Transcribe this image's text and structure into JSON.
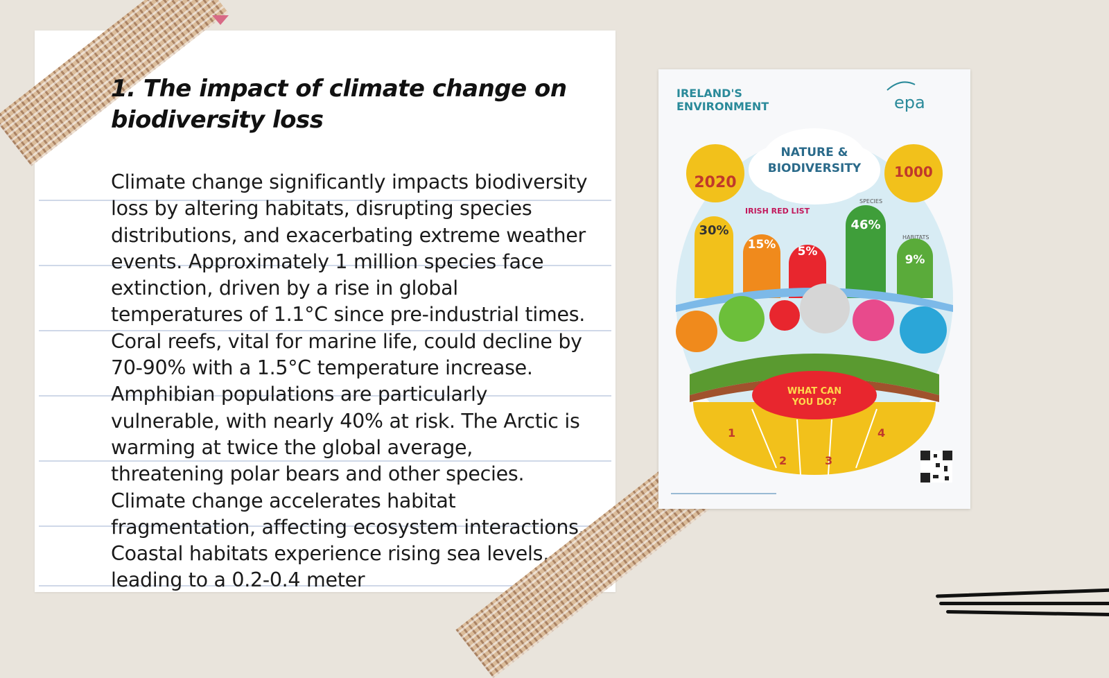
{
  "slide": {
    "title": "1. The impact of climate change on biodiversity loss",
    "paragraph": "Climate change significantly impacts biodiversity loss by altering habitats, disrupting species distributions, and exacerbating extreme weather events. Approximately 1 million species face extinction, driven by a rise in global temperatures of 1.1°C since pre-industrial times. Coral reefs, vital for marine life, could decline by 70-90% with a 1.5°C temperature increase. Amphibian populations are particularly vulnerable, with nearly 40% at risk. The Arctic is warming at twice the global average, threatening polar bears and other species. Climate change accelerates habitat fragmentation, affecting ecosystem interactions. Coastal habitats experience rising sea levels, leading to a 0.2-0.4 meter"
  },
  "poster": {
    "header_line1": "IRELAND'S",
    "header_line2": "ENVIRONMENT",
    "logo": "epa",
    "cloud_line1": "NATURE &",
    "cloud_line2": "BIODIVERSITY",
    "year": "2020",
    "count": "1000",
    "red_list": "IRISH RED LIST",
    "species_label": "SPECIES",
    "habitats_label": "HABITATS",
    "stat_30": "30%",
    "stat_15": "15%",
    "stat_5": "5%",
    "stat_46": "46%",
    "stat_9": "9%",
    "what_line1": "WHAT CAN",
    "what_line2": "YOU DO?",
    "step1": "1",
    "step2": "2",
    "step3": "3",
    "step4": "4"
  },
  "colors": {
    "background": "#e9e4dc",
    "paper": "#ffffff",
    "rule_lines": "#cfd8e8",
    "tape": "#d9b894",
    "tape_tip": "#d86a86",
    "poster_teal": "#2a8a9a",
    "poster_yellow": "#f2c11b",
    "poster_orange": "#f08a1c",
    "poster_red": "#e8262e",
    "poster_green": "#3f9e3a",
    "poster_blue": "#2ba6d8",
    "poster_pink": "#e84a8c"
  }
}
